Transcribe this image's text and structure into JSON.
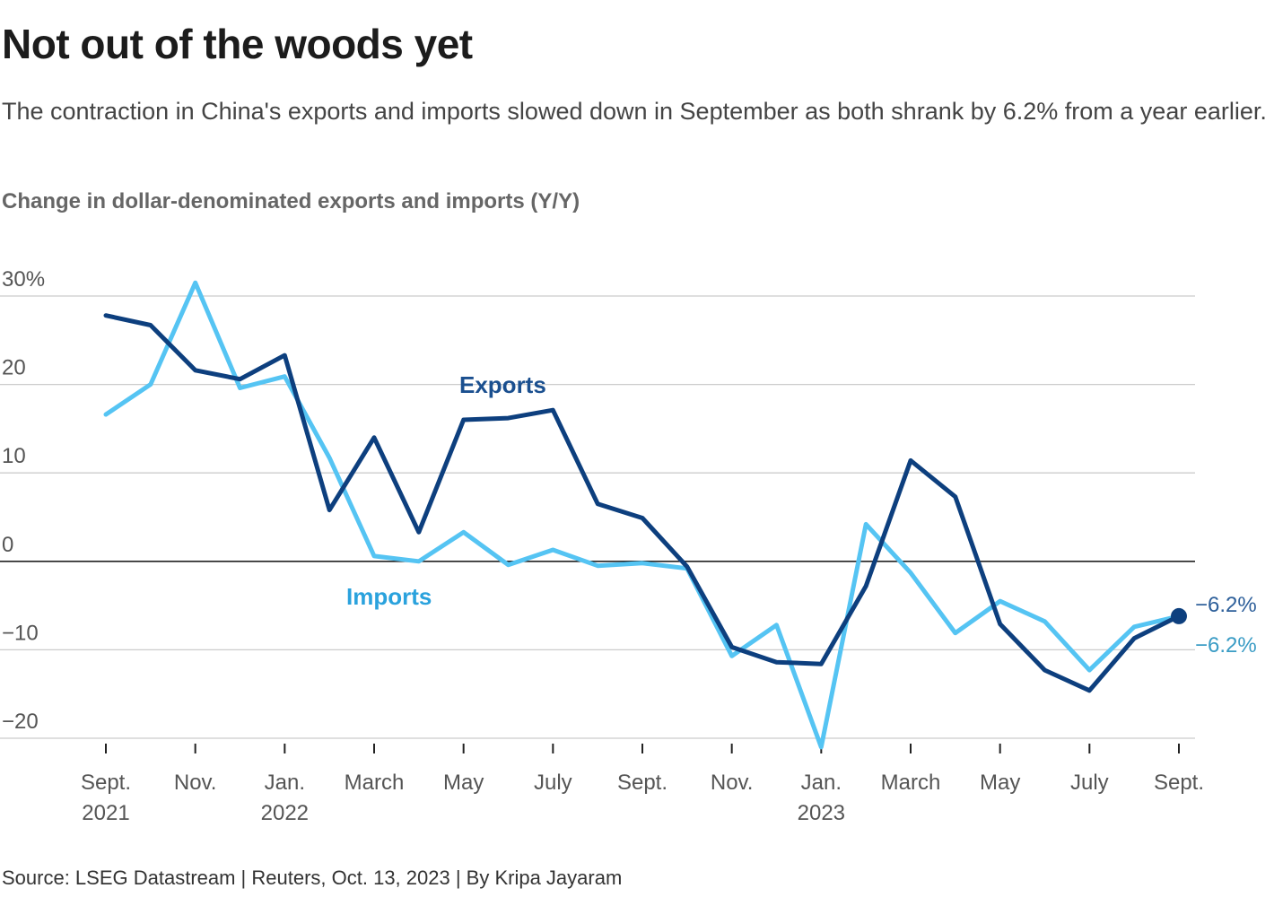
{
  "header": {
    "title": "Not out of the woods yet",
    "subtitle": "The contraction in China's exports and imports slowed down in September as both shrank by 6.2% from a year earlier.",
    "chart_label": "Change in dollar-denominated exports and imports (Y/Y)"
  },
  "footer": {
    "source": "Source: LSEG Datastream | Reuters, Oct. 13, 2023 | By Kripa Jayaram"
  },
  "colors": {
    "exports": "#0d3f7e",
    "imports": "#55c4f3",
    "exports_label": "#1a4f8f",
    "imports_label": "#2aa2dd",
    "end_exports_label": "#2d5f9a",
    "end_imports_label": "#3a9cc5",
    "grid": "#cccccc",
    "zero_line": "#222222"
  },
  "chart_data": {
    "type": "line",
    "title": "Change in dollar-denominated exports and imports (Y/Y)",
    "xlabel": "",
    "ylabel": "",
    "ylim": [
      -20,
      30
    ],
    "yticks": [
      {
        "value": 30,
        "label": "30%"
      },
      {
        "value": 20,
        "label": "20"
      },
      {
        "value": 10,
        "label": "10"
      },
      {
        "value": 0,
        "label": "0"
      },
      {
        "value": -10,
        "label": "−10"
      },
      {
        "value": -20,
        "label": "−20"
      }
    ],
    "x": [
      "2021-09",
      "2021-10",
      "2021-11",
      "2021-12",
      "2022-01",
      "2022-02",
      "2022-03",
      "2022-04",
      "2022-05",
      "2022-06",
      "2022-07",
      "2022-08",
      "2022-09",
      "2022-10",
      "2022-11",
      "2022-12",
      "2023-01",
      "2023-02",
      "2023-03",
      "2023-04",
      "2023-05",
      "2023-06",
      "2023-07",
      "2023-08",
      "2023-09"
    ],
    "xticks": [
      {
        "index": 0,
        "line1": "Sept.",
        "line2": "2021"
      },
      {
        "index": 2,
        "line1": "Nov.",
        "line2": ""
      },
      {
        "index": 4,
        "line1": "Jan.",
        "line2": "2022"
      },
      {
        "index": 6,
        "line1": "March",
        "line2": ""
      },
      {
        "index": 8,
        "line1": "May",
        "line2": ""
      },
      {
        "index": 10,
        "line1": "July",
        "line2": ""
      },
      {
        "index": 12,
        "line1": "Sept.",
        "line2": ""
      },
      {
        "index": 14,
        "line1": "Nov.",
        "line2": ""
      },
      {
        "index": 16,
        "line1": "Jan.",
        "line2": "2023"
      },
      {
        "index": 18,
        "line1": "March",
        "line2": ""
      },
      {
        "index": 20,
        "line1": "May",
        "line2": ""
      },
      {
        "index": 22,
        "line1": "July",
        "line2": ""
      },
      {
        "index": 24,
        "line1": "Sept.",
        "line2": ""
      }
    ],
    "series": [
      {
        "name": "Imports",
        "values": [
          16.6,
          20.0,
          31.5,
          19.6,
          20.9,
          11.7,
          0.6,
          0.0,
          3.3,
          -0.4,
          1.3,
          -0.5,
          -0.2,
          -0.8,
          -10.7,
          -7.2,
          -21.0,
          4.2,
          -1.3,
          -8.1,
          -4.5,
          -6.8,
          -12.3,
          -7.4,
          -6.2
        ],
        "label": "Imports",
        "end_label": "−6.2%"
      },
      {
        "name": "Exports",
        "values": [
          27.8,
          26.7,
          21.6,
          20.6,
          23.3,
          5.8,
          14.0,
          3.3,
          16.0,
          16.2,
          17.1,
          6.5,
          4.9,
          -0.6,
          -9.7,
          -11.4,
          -11.6,
          -2.8,
          11.4,
          7.3,
          -7.1,
          -12.3,
          -14.6,
          -8.7,
          -6.2
        ],
        "label": "Exports",
        "end_label": "−6.2%"
      }
    ]
  }
}
